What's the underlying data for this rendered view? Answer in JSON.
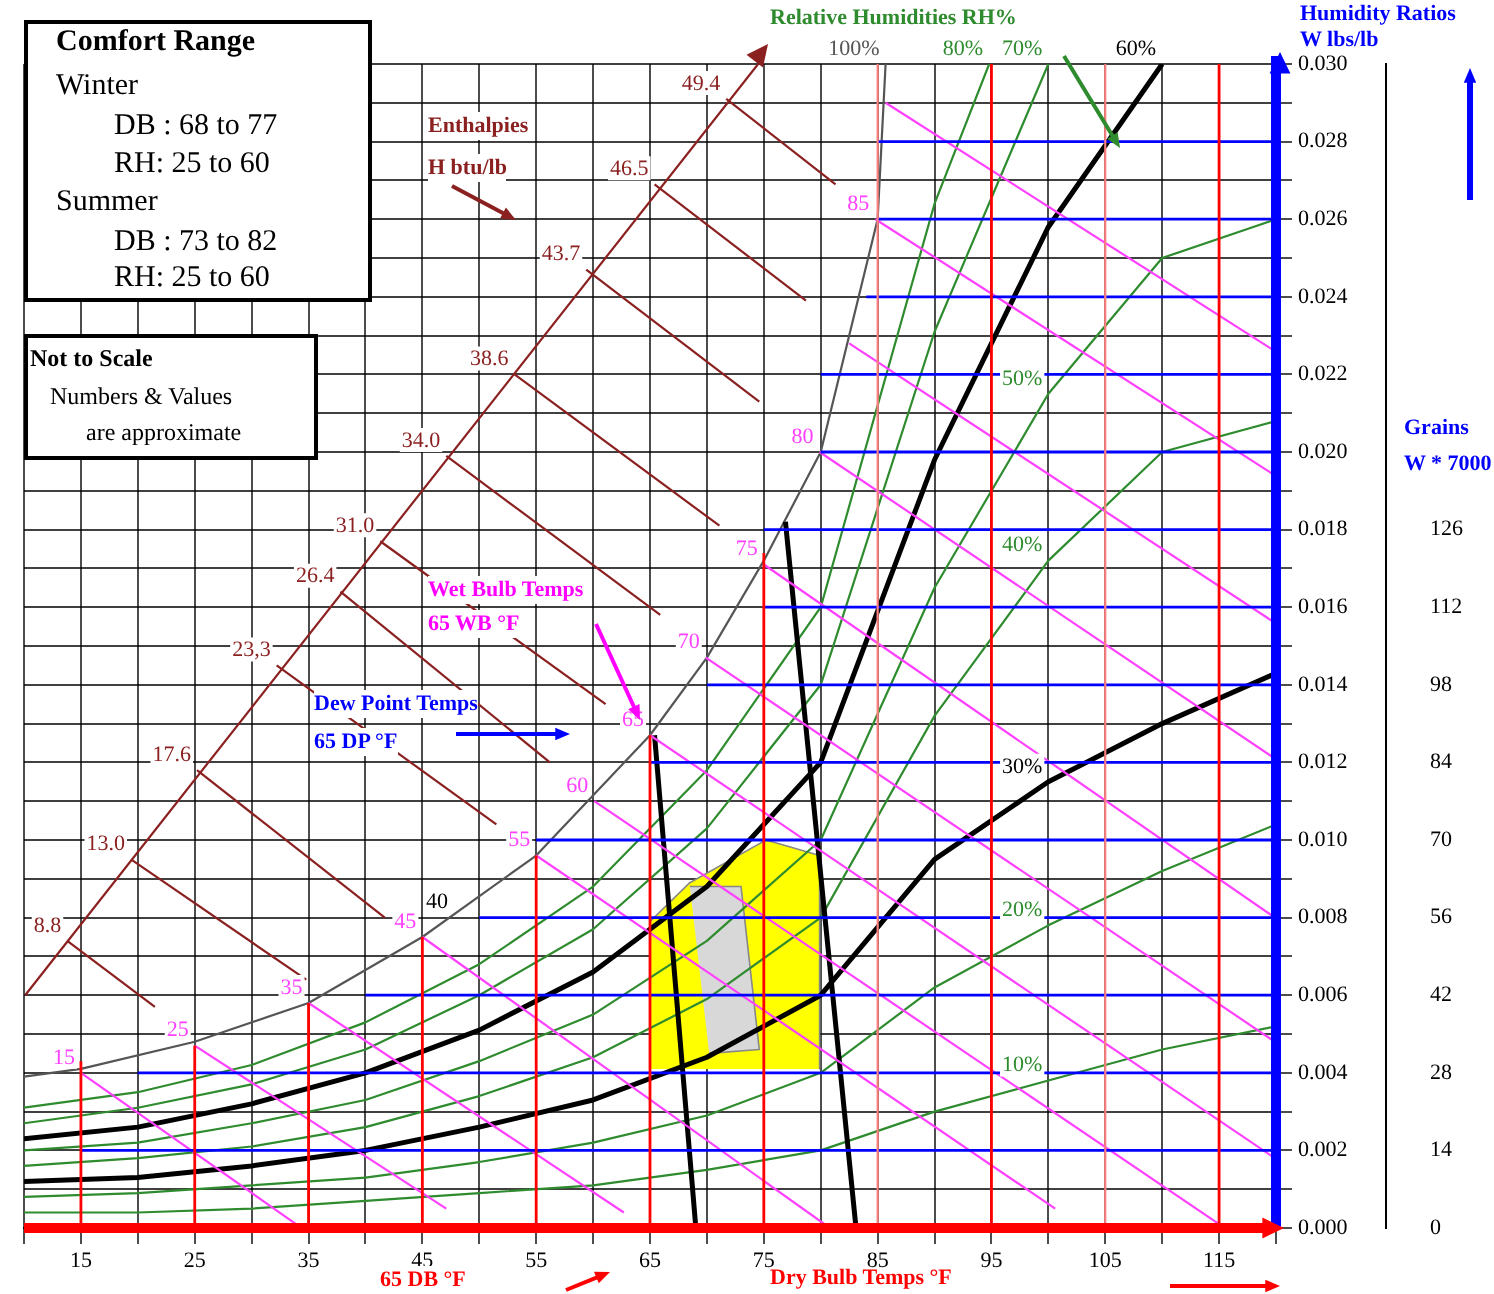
{
  "chart_data": {
    "type": "line",
    "xlabel": "Dry Bulb Temps °F",
    "ylabel": "Humidity Ratios W lbs/lb",
    "y2label": "Grains W * 7000",
    "xlim": [
      10,
      120
    ],
    "xticks": [
      {
        "value": 10,
        "label": null
      },
      15,
      {
        "value": 20,
        "label": null
      },
      25,
      {
        "value": 30,
        "label": null
      },
      35,
      {
        "value": 40,
        "label": null
      },
      45,
      {
        "value": 50,
        "label": null
      },
      55,
      {
        "value": 60,
        "label": null
      },
      65,
      {
        "value": 70,
        "label": null
      },
      75,
      {
        "value": 80,
        "label": null
      },
      85,
      {
        "value": 90,
        "label": null
      },
      95,
      {
        "value": 100,
        "label": null
      },
      105,
      {
        "value": 110,
        "label": null
      },
      115,
      {
        "value": 120,
        "label": null
      }
    ],
    "ylim": [
      0,
      0.03
    ],
    "yticks": [
      {
        "value": 0,
        "label": "0.000"
      },
      {
        "value": 0.001,
        "label": null
      },
      0.002,
      {
        "value": 0.003,
        "label": null
      },
      0.004,
      {
        "value": 0.005,
        "label": null
      },
      0.006,
      {
        "value": 0.007,
        "label": null
      },
      0.008,
      {
        "value": 0.009,
        "label": null
      },
      {
        "value": 0.01,
        "label": "0.010"
      },
      {
        "value": 0.011,
        "label": null
      },
      0.012,
      {
        "value": 0.013,
        "label": null
      },
      0.014,
      {
        "value": 0.015,
        "label": null
      },
      0.016,
      {
        "value": 0.017,
        "label": null
      },
      0.018,
      {
        "value": 0.019,
        "label": null
      },
      {
        "value": 0.02,
        "label": "0.020"
      },
      {
        "value": 0.021,
        "label": null
      },
      0.022,
      {
        "value": 0.023,
        "label": null
      },
      0.024,
      {
        "value": 0.025,
        "label": null
      },
      0.026,
      {
        "value": 0.027,
        "label": null
      },
      0.028,
      {
        "value": 0.029,
        "label": null
      },
      {
        "value": 0.03,
        "label": "0.030"
      }
    ],
    "y2lim": [
      0,
      210
    ],
    "y2ticks": [
      0,
      14,
      28,
      42,
      56,
      70,
      84,
      98,
      112,
      126
    ],
    "grid": true,
    "legend": false,
    "marker": "none",
    "ref_lines": [
      {
        "axis": "y",
        "value": 0,
        "color": "#ff0000"
      },
      {
        "axis": "x",
        "value": 120,
        "color": "#0000ff"
      }
    ],
    "annotations": [
      "Comfort Range",
      "Winter",
      "DB : 68 to 77",
      "RH: 25 to 60",
      "Summer",
      "DB : 73 to 82",
      "RH: 25 to 60",
      "Not to Scale",
      "Numbers & Values",
      "are approximate",
      "Enthalpies",
      "H btu/lb",
      "Relative Humidities RH%",
      "Wet Bulb Temps",
      "65 WB °F",
      "Dew Point Temps",
      "65 DP °F",
      "65 DB °F",
      "40"
    ],
    "series": [
      {
        "type": "area",
        "color": "#ffff00",
        "x": [
          65,
          65,
          68.5,
          75.2,
          79.9,
          79.9
        ],
        "values": [
          0.0041,
          0.0079,
          0.0089,
          0.01,
          0.0096,
          0.0041
        ]
      },
      {
        "type": "area",
        "color": "#d8d8d8",
        "x": [
          68.5,
          73,
          74.6,
          70.2
        ],
        "values": [
          0.0088,
          0.0088,
          0.0046,
          0.0045
        ]
      },
      {
        "color": "#ff0000",
        "x": [
          15,
          15
        ],
        "values": [
          0,
          0.0043
        ]
      },
      {
        "color": "#ff0000",
        "x": [
          25,
          25
        ],
        "values": [
          0,
          0.0047
        ]
      },
      {
        "color": "#ff0000",
        "x": [
          35,
          35
        ],
        "values": [
          0,
          0.0058
        ]
      },
      {
        "color": "#ff0000",
        "x": [
          45,
          45
        ],
        "values": [
          0,
          0.0075
        ]
      },
      {
        "color": "#ff0000",
        "x": [
          55,
          55
        ],
        "values": [
          0,
          0.0096
        ]
      },
      {
        "color": "#ff0000",
        "x": [
          65,
          65
        ],
        "values": [
          0,
          0.0127
        ]
      },
      {
        "color": "#ff0000",
        "x": [
          75,
          75
        ],
        "values": [
          0,
          0.0174
        ]
      },
      {
        "color": "#ff8080",
        "x": [
          85,
          85
        ],
        "values": [
          0,
          0.03
        ]
      },
      {
        "color": "#ff0000",
        "x": [
          95,
          95
        ],
        "values": [
          0,
          0.03
        ]
      },
      {
        "color": "#ff8080",
        "x": [
          105,
          105
        ],
        "values": [
          0,
          0.03
        ]
      },
      {
        "color": "#ff0000",
        "x": [
          115,
          115
        ],
        "values": [
          0,
          0.03
        ]
      },
      {
        "color": "#0000ff",
        "x": [
          15,
          120
        ],
        "values": [
          0.002,
          0.002
        ]
      },
      {
        "color": "#0000ff",
        "x": [
          20,
          120
        ],
        "values": [
          0.004,
          0.004
        ]
      },
      {
        "color": "#0000ff",
        "x": [
          40,
          120
        ],
        "values": [
          0.006,
          0.006
        ]
      },
      {
        "color": "#0000ff",
        "x": [
          50,
          120
        ],
        "values": [
          0.008,
          0.008
        ]
      },
      {
        "color": "#0000ff",
        "x": [
          55,
          120
        ],
        "values": [
          0.01,
          0.01
        ]
      },
      {
        "color": "#0000ff",
        "x": [
          65,
          120
        ],
        "values": [
          0.012,
          0.012
        ]
      },
      {
        "color": "#0000ff",
        "x": [
          70,
          120
        ],
        "values": [
          0.014,
          0.014
        ]
      },
      {
        "color": "#0000ff",
        "x": [
          75,
          120
        ],
        "values": [
          0.016,
          0.016
        ]
      },
      {
        "color": "#0000ff",
        "x": [
          75,
          120
        ],
        "values": [
          0.018,
          0.018
        ]
      },
      {
        "color": "#0000ff",
        "x": [
          80,
          120
        ],
        "values": [
          0.02,
          0.02
        ]
      },
      {
        "color": "#0000ff",
        "x": [
          80,
          120
        ],
        "values": [
          0.022,
          0.022
        ]
      },
      {
        "color": "#0000ff",
        "x": [
          84,
          120
        ],
        "values": [
          0.024,
          0.024
        ]
      },
      {
        "color": "#0000ff",
        "x": [
          85,
          120
        ],
        "values": [
          0.026,
          0.026
        ]
      },
      {
        "color": "#0000ff",
        "x": [
          85,
          120
        ],
        "values": [
          0.028,
          0.028
        ]
      },
      {
        "color": "#ff40ff",
        "x": [
          85.7,
          119.9
        ],
        "values": [
          0.029,
          0.0226
        ]
      },
      {
        "name": "85",
        "color": "#ff40ff",
        "x": [
          84.8,
          119.9
        ],
        "values": [
          0.026,
          0.0194
        ]
      },
      {
        "color": "#ff40ff",
        "x": [
          82.5,
          119.9
        ],
        "values": [
          0.0228,
          0.0156
        ]
      },
      {
        "name": "80",
        "color": "#ff40ff",
        "x": [
          79.9,
          119.9
        ],
        "values": [
          0.02,
          0.0121
        ]
      },
      {
        "name": "75",
        "color": "#ff40ff",
        "x": [
          75,
          119.9
        ],
        "values": [
          0.0171,
          0.008
        ]
      },
      {
        "name": "70",
        "color": "#ff40ff",
        "x": [
          69.9,
          119.9
        ],
        "values": [
          0.0147,
          0.0048
        ]
      },
      {
        "name": "65",
        "color": "#ff40ff",
        "x": [
          65,
          119.9
        ],
        "values": [
          0.0127,
          0.0018
        ]
      },
      {
        "name": "60",
        "color": "#ff40ff",
        "x": [
          60.1,
          115
        ],
        "values": [
          0.011,
          0.0001
        ]
      },
      {
        "name": "55",
        "color": "#ff40ff",
        "x": [
          55,
          100.6
        ],
        "values": [
          0.0096,
          0.0005
        ]
      },
      {
        "name": "45",
        "color": "#ff40ff",
        "x": [
          45,
          80.8
        ],
        "values": [
          0.0075,
          0
        ]
      },
      {
        "name": "35",
        "color": "#ff40ff",
        "x": [
          35,
          62.7
        ],
        "values": [
          0.0058,
          0.0004
        ]
      },
      {
        "name": "25",
        "color": "#ff40ff",
        "x": [
          25,
          47.1
        ],
        "values": [
          0.0047,
          0.0005
        ]
      },
      {
        "name": "15",
        "color": "#ff40ff",
        "x": [
          15,
          33.9
        ],
        "values": [
          0.004,
          0.0001
        ]
      },
      {
        "color": "#8b2020",
        "x": [
          10.1,
          74.5
        ],
        "values": [
          0.006,
          0.03
        ]
      },
      {
        "name": "8.8",
        "color": "#8b2020",
        "x": [
          13.8,
          21.5
        ],
        "values": [
          0.0074,
          0.0057
        ]
      },
      {
        "name": "13.0",
        "color": "#8b2020",
        "x": [
          19.4,
          34.8
        ],
        "values": [
          0.0095,
          0.0064
        ]
      },
      {
        "name": "17.6",
        "color": "#8b2020",
        "x": [
          25.2,
          41.7
        ],
        "values": [
          0.0118,
          0.008
        ]
      },
      {
        "name": "23,3",
        "color": "#8b2020",
        "x": [
          32.2,
          51.5
        ],
        "values": [
          0.0145,
          0.0104
        ]
      },
      {
        "name": "26.4",
        "color": "#8b2020",
        "x": [
          37.8,
          56.2
        ],
        "values": [
          0.0164,
          0.012
        ]
      },
      {
        "name": "31.0",
        "color": "#8b2020",
        "x": [
          41.3,
          61.1
        ],
        "values": [
          0.0177,
          0.0135
        ]
      },
      {
        "name": "34.0",
        "color": "#8b2020",
        "x": [
          47.1,
          65.9
        ],
        "values": [
          0.0199,
          0.0158
        ]
      },
      {
        "name": "38.6",
        "color": "#8b2020",
        "x": [
          53.1,
          71.1
        ],
        "values": [
          0.022,
          0.0181
        ]
      },
      {
        "name": "43.7",
        "color": "#8b2020",
        "x": [
          59.4,
          74.6
        ],
        "values": [
          0.0247,
          0.0213
        ]
      },
      {
        "name": "46.5",
        "color": "#8b2020",
        "x": [
          65.4,
          78.7
        ],
        "values": [
          0.0269,
          0.0239
        ]
      },
      {
        "name": "49.4",
        "color": "#8b2020",
        "x": [
          71.7,
          81.3
        ],
        "values": [
          0.0291,
          0.0269
        ]
      },
      {
        "color": "#000000",
        "x": [
          65.4,
          69
        ],
        "values": [
          0.0127,
          0.0001
        ]
      },
      {
        "color": "#000000",
        "x": [
          76.9,
          83.1
        ],
        "values": [
          0.0182,
          0
        ]
      },
      {
        "name": "100%",
        "color": "#555555",
        "x": [
          10,
          15,
          25,
          35,
          45,
          55,
          65,
          70,
          75,
          80,
          85,
          85.7
        ],
        "values": [
          0.0039,
          0.0041,
          0.0048,
          0.0058,
          0.0075,
          0.0096,
          0.0127,
          0.0147,
          0.0172,
          0.02,
          0.026,
          0.03
        ]
      },
      {
        "name": "80%",
        "color": "#2e8b2e",
        "x": [
          10,
          20,
          30,
          40,
          50,
          60,
          70,
          80,
          90,
          94.8
        ],
        "values": [
          0.0031,
          0.0035,
          0.0042,
          0.0053,
          0.0068,
          0.0088,
          0.0118,
          0.016,
          0.0264,
          0.03
        ]
      },
      {
        "name": "70%",
        "color": "#2e8b2e",
        "x": [
          10,
          20,
          30,
          40,
          50,
          60,
          70,
          80,
          90,
          100
        ],
        "values": [
          0.0027,
          0.0031,
          0.0037,
          0.0046,
          0.006,
          0.0077,
          0.0103,
          0.014,
          0.0231,
          0.03
        ]
      },
      {
        "name": "60%",
        "color": "#000000",
        "x": [
          10,
          20,
          30,
          40,
          50,
          60,
          70,
          80,
          90,
          100,
          110
        ],
        "values": [
          0.0023,
          0.0026,
          0.0032,
          0.004,
          0.0051,
          0.0066,
          0.0088,
          0.012,
          0.0198,
          0.0258,
          0.03
        ]
      },
      {
        "name": "50%",
        "color": "#2e8b2e",
        "x": [
          10,
          20,
          30,
          40,
          50,
          60,
          70,
          80,
          90,
          100,
          110,
          120
        ],
        "values": [
          0.002,
          0.0022,
          0.0027,
          0.0033,
          0.0043,
          0.0055,
          0.0074,
          0.01,
          0.0165,
          0.0215,
          0.025,
          0.026
        ]
      },
      {
        "name": "40%",
        "color": "#2e8b2e",
        "x": [
          10,
          20,
          30,
          40,
          50,
          60,
          70,
          80,
          90,
          100,
          110,
          120
        ],
        "values": [
          0.0016,
          0.0018,
          0.0021,
          0.0026,
          0.0034,
          0.0044,
          0.0059,
          0.008,
          0.0132,
          0.0172,
          0.02,
          0.0208
        ]
      },
      {
        "name": "30%",
        "color": "#000000",
        "x": [
          10,
          20,
          30,
          40,
          50,
          60,
          70,
          80,
          90,
          100,
          110,
          120
        ],
        "values": [
          0.0012,
          0.0013,
          0.0016,
          0.002,
          0.0026,
          0.0033,
          0.0044,
          0.006,
          0.0095,
          0.0115,
          0.013,
          0.0143
        ]
      },
      {
        "name": "20%",
        "color": "#2e8b2e",
        "x": [
          10,
          20,
          30,
          40,
          50,
          60,
          70,
          80,
          90,
          100,
          110,
          120
        ],
        "values": [
          0.0008,
          0.0009,
          0.0011,
          0.0013,
          0.0017,
          0.0022,
          0.0029,
          0.004,
          0.0062,
          0.0078,
          0.0092,
          0.0104
        ]
      },
      {
        "name": "10%",
        "color": "#2e8b2e",
        "x": [
          10,
          20,
          30,
          40,
          50,
          60,
          70,
          80,
          90,
          100,
          110,
          120
        ],
        "values": [
          0.0004,
          0.0004,
          0.0005,
          0.0007,
          0.0009,
          0.0011,
          0.0015,
          0.002,
          0.003,
          0.0038,
          0.0046,
          0.0052
        ]
      }
    ]
  }
}
